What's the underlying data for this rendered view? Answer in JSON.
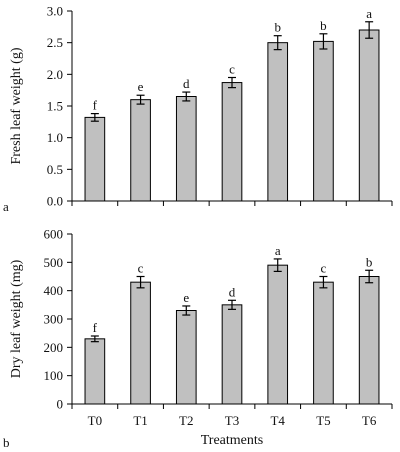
{
  "chart_data": [
    {
      "type": "bar",
      "panel_label": "a",
      "categories": [
        "T0",
        "T1",
        "T2",
        "T3",
        "T4",
        "T5",
        "T6"
      ],
      "values": [
        1.32,
        1.6,
        1.65,
        1.87,
        2.5,
        2.52,
        2.7
      ],
      "errors": [
        0.06,
        0.07,
        0.07,
        0.08,
        0.11,
        0.12,
        0.13
      ],
      "letters": [
        "f",
        "e",
        "d",
        "c",
        "b",
        "b",
        "a"
      ],
      "xlabel": "",
      "ylabel": "Fresh leaf weight (g)",
      "ylim": [
        0.0,
        3.0
      ],
      "yticks": [
        "0.0",
        "0.5",
        "1.0",
        "1.5",
        "2.0",
        "2.5",
        "3.0"
      ],
      "show_category_labels": false,
      "bar_color": "#c0c0c0",
      "grid": false
    },
    {
      "type": "bar",
      "panel_label": "b",
      "categories": [
        "T0",
        "T1",
        "T2",
        "T3",
        "T4",
        "T5",
        "T6"
      ],
      "values": [
        230,
        430,
        330,
        350,
        490,
        430,
        450
      ],
      "errors": [
        10,
        20,
        16,
        16,
        22,
        20,
        22
      ],
      "letters": [
        "f",
        "c",
        "e",
        "d",
        "a",
        "c",
        "b"
      ],
      "xlabel": "Treatments",
      "ylabel": "Dry leaf weight (mg)",
      "ylim": [
        0,
        600
      ],
      "yticks": [
        "0",
        "100",
        "200",
        "300",
        "400",
        "500",
        "600"
      ],
      "show_category_labels": true,
      "bar_color": "#c0c0c0",
      "grid": false
    }
  ]
}
